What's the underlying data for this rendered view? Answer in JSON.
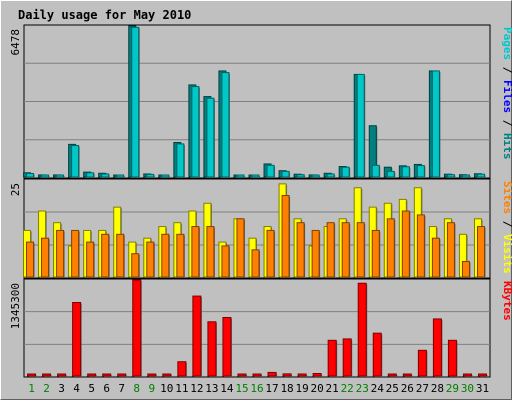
{
  "chart_data": {
    "type": "bar",
    "title": "Daily usage for May 2010",
    "categories": [
      "1",
      "2",
      "3",
      "4",
      "5",
      "6",
      "7",
      "8",
      "9",
      "10",
      "11",
      "12",
      "13",
      "14",
      "15",
      "16",
      "17",
      "18",
      "19",
      "20",
      "21",
      "22",
      "23",
      "24",
      "25",
      "26",
      "27",
      "28",
      "29",
      "30",
      "31"
    ],
    "weekend_days": [
      "1",
      "2",
      "8",
      "9",
      "15",
      "16",
      "22",
      "23",
      "29",
      "30"
    ],
    "colors": {
      "title": "#0000a0",
      "pages": "#00c8c8",
      "files": "#0000ff",
      "hits": "#008080",
      "sites": "#ff8000",
      "visits": "#ffff00",
      "kbytes": "#ff0000",
      "weekday_label": "#000000",
      "weekend_label": "#008000"
    },
    "panels": [
      {
        "id": "hits-files",
        "ymax_label": "6478",
        "legend": [
          {
            "text": "Pages",
            "color": "#00c8c8"
          },
          {
            "text": "Files",
            "color": "#0000ff"
          },
          {
            "text": "Hits",
            "color": "#008080"
          }
        ],
        "ylim": [
          0,
          6478
        ],
        "series": [
          {
            "name": "Hits",
            "color": "#008080",
            "values": [
              180,
              90,
              90,
              1400,
              210,
              160,
              50,
              6478,
              130,
              70,
              1480,
              3950,
              3450,
              4550,
              70,
              60,
              560,
              270,
              120,
              90,
              160,
              450,
              4400,
              2200,
              420,
              480,
              540,
              4550,
              120,
              100,
              140
            ]
          },
          {
            "name": "Files",
            "color": "#00c8c8",
            "values": [
              150,
              80,
              80,
              1350,
              180,
              130,
              40,
              6420,
              110,
              60,
              1420,
              3880,
              3380,
              4480,
              60,
              50,
              500,
              240,
              100,
              80,
              130,
              420,
              4400,
              500,
              240,
              440,
              490,
              4550,
              100,
              80,
              120
            ]
          }
        ]
      },
      {
        "id": "sites-visits",
        "ymax_label": "25",
        "legend": [
          {
            "text": "Sites",
            "color": "#ff8000"
          },
          {
            "text": "Visits",
            "color": "#ffff00"
          }
        ],
        "ylim": [
          0,
          25
        ],
        "series": [
          {
            "name": "Visits",
            "color": "#ffff00",
            "values": [
              12,
              17,
              14,
              8,
              12,
              12,
              18,
              9,
              10,
              13,
              14,
              17,
              19,
              9,
              15,
              10,
              13,
              24,
              15,
              8,
              13,
              15,
              23,
              18,
              19,
              20,
              23,
              13,
              15,
              11,
              15
            ]
          },
          {
            "name": "Sites",
            "color": "#ff8000",
            "values": [
              9,
              10,
              12,
              12,
              9,
              11,
              11,
              6,
              9,
              11,
              11,
              13,
              13,
              8,
              15,
              7,
              12,
              21,
              14,
              12,
              14,
              14,
              14,
              12,
              15,
              17,
              16,
              10,
              14,
              4,
              13
            ]
          }
        ]
      },
      {
        "id": "kbytes",
        "ymax_label": "1345300",
        "legend": [
          {
            "text": "KBytes",
            "color": "#ff0000"
          }
        ],
        "ylim": [
          0,
          1345300
        ],
        "series": [
          {
            "name": "KBytes",
            "color": "#ff0000",
            "values": [
              0,
              0,
              0,
              1030000,
              25000,
              25000,
              0,
              1345300,
              20000,
              0,
              200000,
              1120000,
              760000,
              820000,
              0,
              0,
              50000,
              30000,
              20000,
              35000,
              500000,
              520000,
              1300000,
              600000,
              20000,
              25000,
              360000,
              800000,
              500000,
              20000,
              20000
            ]
          }
        ]
      }
    ]
  }
}
